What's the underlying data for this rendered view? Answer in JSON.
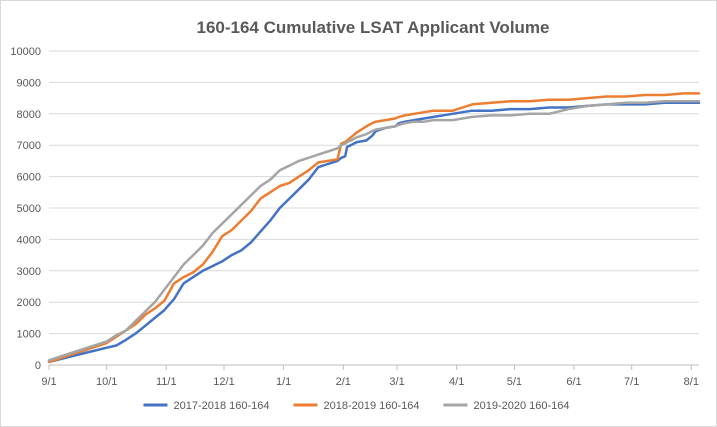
{
  "chart_data": {
    "type": "line",
    "title": "160-164 Cumulative LSAT Applicant Volume",
    "xlabel": "",
    "ylabel": "",
    "xlim": [
      0,
      338
    ],
    "ylim": [
      0,
      10000
    ],
    "y_ticks": [
      0,
      1000,
      2000,
      3000,
      4000,
      5000,
      6000,
      7000,
      8000,
      9000,
      10000
    ],
    "x_ticks": [
      {
        "day": 0,
        "label": "9/1"
      },
      {
        "day": 30,
        "label": "10/1"
      },
      {
        "day": 61,
        "label": "11/1"
      },
      {
        "day": 91,
        "label": "12/1"
      },
      {
        "day": 122,
        "label": "1/1"
      },
      {
        "day": 153,
        "label": "2/1"
      },
      {
        "day": 181,
        "label": "3/1"
      },
      {
        "day": 212,
        "label": "4/1"
      },
      {
        "day": 242,
        "label": "5/1"
      },
      {
        "day": 273,
        "label": "6/1"
      },
      {
        "day": 303,
        "label": "7/1"
      },
      {
        "day": 334,
        "label": "8/1"
      }
    ],
    "grid": true,
    "legend_position": "bottom",
    "series": [
      {
        "name": "2017-2018 160-164",
        "color": "#4472c4",
        "x": [
          0,
          10,
          20,
          30,
          35,
          40,
          45,
          50,
          55,
          60,
          65,
          70,
          75,
          80,
          85,
          90,
          95,
          100,
          105,
          110,
          115,
          120,
          125,
          130,
          135,
          140,
          145,
          150,
          152,
          154,
          155,
          157,
          160,
          165,
          168,
          170,
          175,
          180,
          182,
          185,
          190,
          195,
          200,
          210,
          215,
          220,
          230,
          240,
          250,
          260,
          270,
          280,
          290,
          300,
          310,
          320,
          330,
          338
        ],
        "y": [
          100,
          250,
          400,
          550,
          620,
          800,
          1000,
          1250,
          1500,
          1750,
          2100,
          2600,
          2800,
          3000,
          3150,
          3300,
          3500,
          3650,
          3900,
          4250,
          4600,
          5000,
          5300,
          5600,
          5900,
          6300,
          6400,
          6500,
          6600,
          6650,
          6950,
          7000,
          7100,
          7150,
          7300,
          7450,
          7550,
          7600,
          7700,
          7750,
          7800,
          7850,
          7900,
          8000,
          8050,
          8100,
          8100,
          8150,
          8150,
          8200,
          8200,
          8250,
          8300,
          8300,
          8300,
          8350,
          8350,
          8350
        ]
      },
      {
        "name": "2018-2019 160-164",
        "color": "#ed7d31",
        "x": [
          0,
          10,
          20,
          30,
          35,
          40,
          45,
          50,
          55,
          60,
          65,
          70,
          75,
          80,
          85,
          90,
          95,
          100,
          105,
          110,
          115,
          120,
          125,
          130,
          135,
          140,
          145,
          150,
          152,
          154,
          155,
          157,
          160,
          165,
          168,
          170,
          175,
          180,
          182,
          185,
          190,
          195,
          200,
          210,
          215,
          220,
          230,
          240,
          250,
          260,
          270,
          280,
          290,
          300,
          310,
          320,
          330,
          338
        ],
        "y": [
          100,
          300,
          500,
          700,
          900,
          1100,
          1300,
          1600,
          1800,
          2050,
          2600,
          2800,
          2950,
          3200,
          3600,
          4100,
          4300,
          4600,
          4900,
          5300,
          5500,
          5700,
          5800,
          6000,
          6200,
          6450,
          6500,
          6550,
          7050,
          7100,
          7150,
          7250,
          7400,
          7600,
          7700,
          7750,
          7800,
          7850,
          7900,
          7950,
          8000,
          8050,
          8100,
          8100,
          8200,
          8300,
          8350,
          8400,
          8400,
          8450,
          8450,
          8500,
          8550,
          8550,
          8600,
          8600,
          8650,
          8650
        ]
      },
      {
        "name": "2019-2020 160-164",
        "color": "#a5a5a5",
        "x": [
          0,
          10,
          20,
          30,
          35,
          40,
          45,
          50,
          55,
          60,
          65,
          70,
          75,
          80,
          85,
          90,
          95,
          100,
          105,
          110,
          115,
          120,
          125,
          130,
          135,
          140,
          145,
          150,
          152,
          154,
          155,
          157,
          160,
          165,
          168,
          170,
          175,
          180,
          182,
          185,
          190,
          195,
          200,
          210,
          215,
          220,
          230,
          240,
          250,
          260,
          270,
          280,
          290,
          300,
          310,
          320,
          330,
          338
        ],
        "y": [
          150,
          350,
          550,
          750,
          950,
          1100,
          1400,
          1700,
          2000,
          2400,
          2800,
          3200,
          3500,
          3800,
          4200,
          4500,
          4800,
          5100,
          5400,
          5700,
          5900,
          6200,
          6350,
          6500,
          6600,
          6700,
          6800,
          6900,
          7000,
          7050,
          7100,
          7150,
          7250,
          7350,
          7450,
          7500,
          7550,
          7600,
          7650,
          7700,
          7750,
          7750,
          7800,
          7800,
          7850,
          7900,
          7950,
          7950,
          8000,
          8000,
          8150,
          8250,
          8300,
          8350,
          8350,
          8400,
          8400,
          8400
        ]
      }
    ]
  }
}
